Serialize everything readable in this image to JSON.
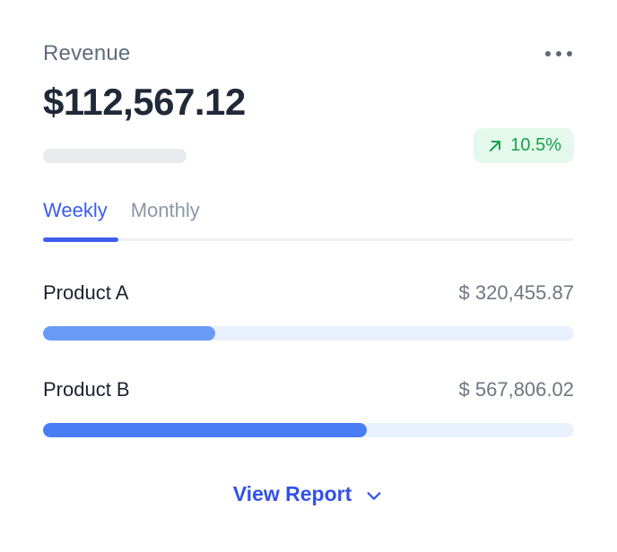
{
  "card": {
    "title": "Revenue",
    "total_amount": "$112,567.12",
    "menu_icon": "ellipsis-horizontal",
    "change": {
      "value": "10.5%",
      "direction": "up",
      "icon": "arrow-up-right",
      "text_color": "#16a34a",
      "bg_color": "#e4f8ec"
    },
    "tabs": [
      {
        "label": "Weekly",
        "active": true
      },
      {
        "label": "Monthly",
        "active": false
      }
    ],
    "products": [
      {
        "name": "Product A",
        "value": "$ 320,455.87",
        "percent": 32.5,
        "fill_color": "#699af8"
      },
      {
        "name": "Product B",
        "value": "$ 567,806.02",
        "percent": 61.0,
        "fill_color": "#4a7cf6"
      }
    ],
    "footer": {
      "label": "View Report",
      "icon": "chevron-down"
    }
  },
  "colors": {
    "active_tab": "#3b5cf0",
    "inactive_tab": "#8d97a5",
    "tab_indicator": "#3e5ef2",
    "link_blue": "#3351e9",
    "bar_track": "#e8f1fd",
    "placeholder_pill": "#e9ebef",
    "title_gray": "#5f6c7b",
    "amount_dark": "#202938",
    "value_gray": "#6e7680"
  }
}
